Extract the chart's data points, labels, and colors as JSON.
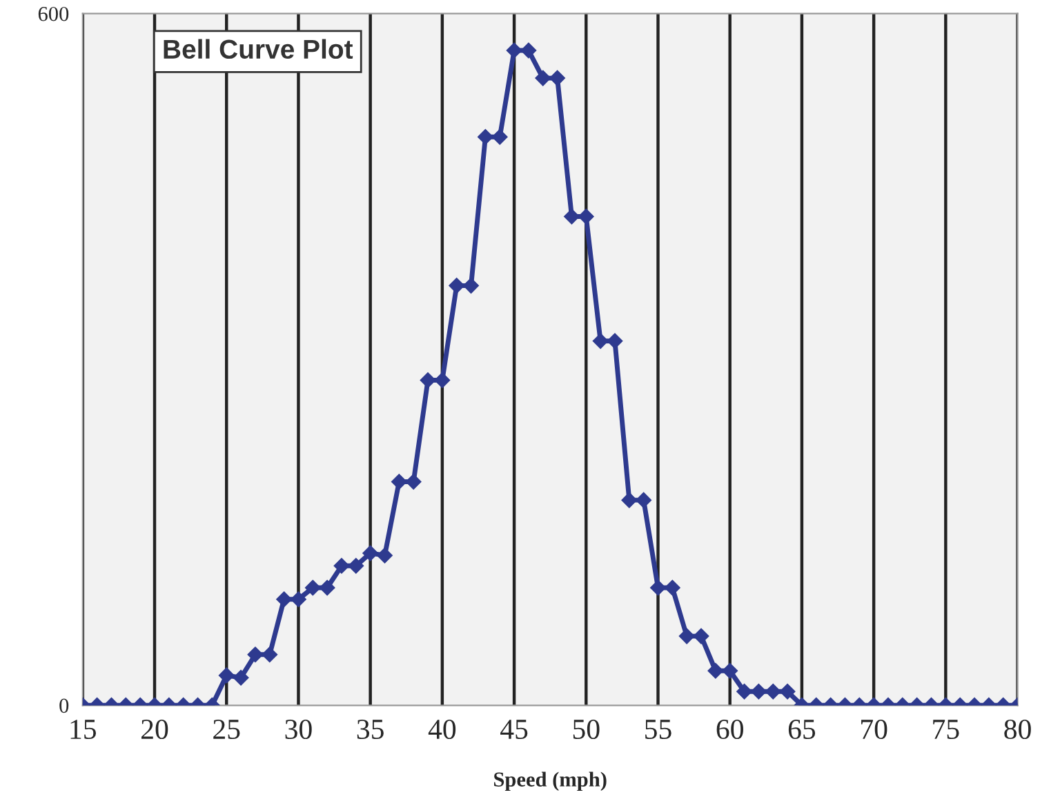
{
  "chart_data": {
    "type": "line",
    "title": "Bell Curve Plot",
    "xlabel": "Speed (mph)",
    "x": [
      15,
      16,
      17,
      18,
      19,
      20,
      21,
      22,
      23,
      24,
      25,
      26,
      27,
      28,
      29,
      30,
      31,
      32,
      33,
      34,
      35,
      36,
      37,
      38,
      39,
      40,
      41,
      42,
      43,
      44,
      45,
      46,
      47,
      48,
      49,
      50,
      51,
      52,
      53,
      54,
      55,
      56,
      57,
      58,
      59,
      60,
      61,
      62,
      63,
      64,
      65,
      66,
      67,
      68,
      69,
      70,
      71,
      72,
      73,
      74,
      75,
      76,
      77,
      78,
      79,
      80
    ],
    "series": [
      {
        "color": "#2e3a8f",
        "values": [
          0,
          0,
          0,
          0,
          0,
          0,
          0,
          0,
          0,
          0,
          26,
          24,
          44,
          44,
          92,
          92,
          102,
          102,
          121,
          121,
          132,
          130,
          194,
          194,
          282,
          282,
          364,
          364,
          493,
          493,
          568,
          568,
          544,
          544,
          424,
          424,
          316,
          316,
          178,
          178,
          102,
          102,
          60,
          60,
          30,
          30,
          12,
          12,
          12,
          12,
          0,
          0,
          0,
          0,
          0,
          0,
          0,
          0,
          0,
          0,
          0,
          0,
          0,
          0,
          0,
          0
        ]
      }
    ],
    "xlim": [
      15,
      80
    ],
    "xticks": [
      15,
      20,
      25,
      30,
      35,
      40,
      45,
      50,
      55,
      60,
      65,
      70,
      75,
      80
    ],
    "ylim": [
      0,
      600
    ],
    "yticks": [
      0,
      600
    ],
    "grid": "x",
    "marker": "diamond",
    "line_style": "solid"
  }
}
